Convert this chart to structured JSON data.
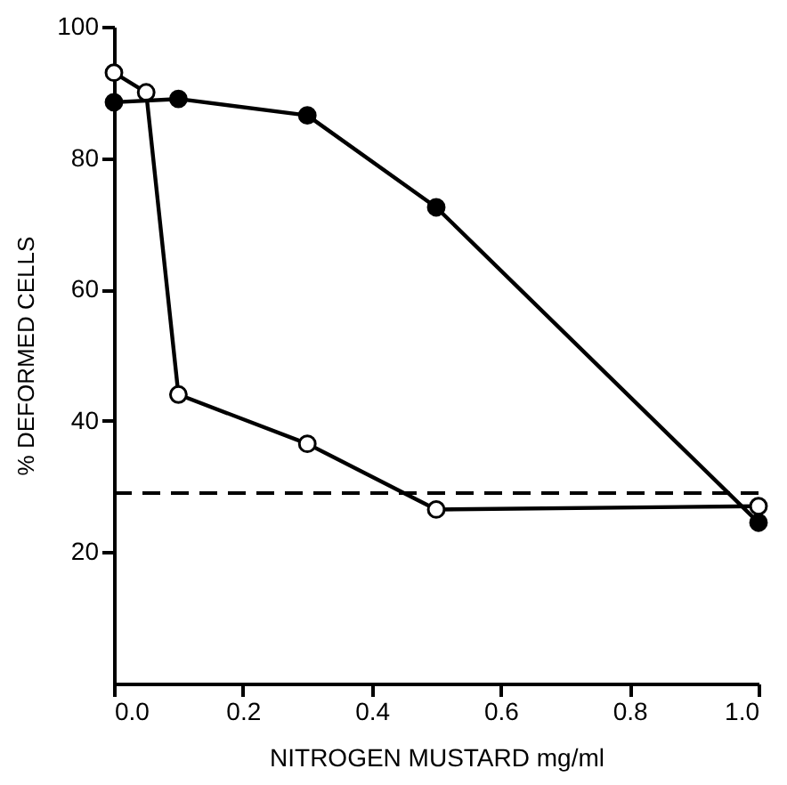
{
  "chart_data": {
    "type": "line",
    "xlabel": "NITROGEN MUSTARD mg/ml",
    "ylabel": "% DEFORMED CELLS",
    "xlim": [
      0,
      1.0
    ],
    "xticks": [
      {
        "value": 0,
        "label": "0.0"
      },
      {
        "value": 0.2,
        "label": "0.2"
      },
      {
        "value": 0.4,
        "label": "0.4"
      },
      {
        "value": 0.6,
        "label": "0.6"
      },
      {
        "value": 0.8,
        "label": "0.8"
      },
      {
        "value": 1.0,
        "label": "1.0"
      }
    ],
    "ylim": [
      0,
      100
    ],
    "yticks": [
      20,
      40,
      60,
      80,
      100
    ],
    "grid": false,
    "line_style": "solid",
    "series": [
      {
        "color": "#000000",
        "marker": "circle",
        "x": [
          0,
          0.05,
          0.1,
          0.3,
          0.5,
          1.0
        ],
        "values": [
          93,
          90,
          44,
          36.5,
          26.5,
          27
        ]
      },
      {
        "color": "#000000",
        "marker": "circle",
        "x": [
          0,
          0.1,
          0.3,
          0.5,
          1.0
        ],
        "values": [
          88.5,
          89,
          86.5,
          72.5,
          24.5
        ]
      }
    ],
    "ref_lines": [
      {
        "axis": "y",
        "value": 29,
        "color": "#000000",
        "line_style": "dashed"
      }
    ]
  }
}
